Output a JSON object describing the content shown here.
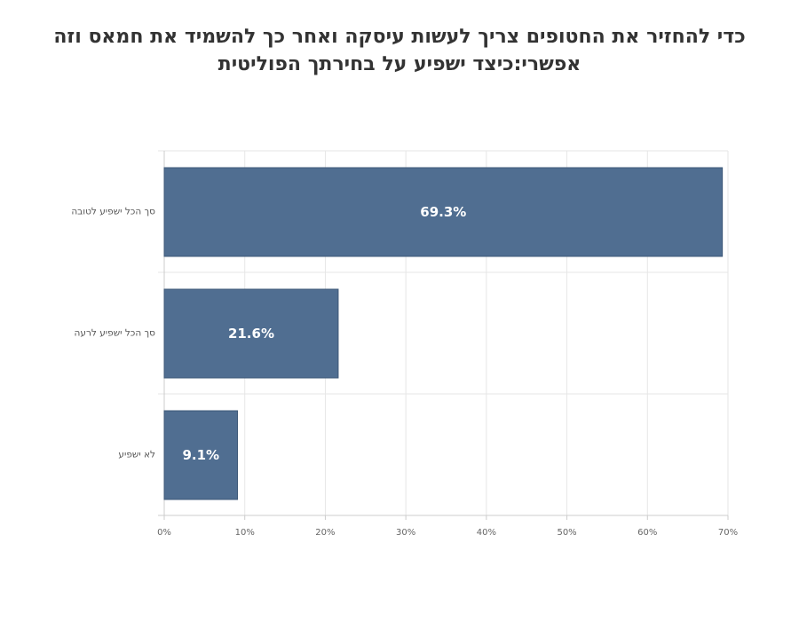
{
  "chart_data": {
    "type": "bar",
    "orientation": "horizontal",
    "title_lines": [
      "כדי להחזיר את החטופים צריך לעשות עיסקה ואחר כך להשמיד את חמאס וזה",
      "אפשרי:כיצד ישפיע על בחירתך הפוליטית"
    ],
    "categories": [
      "סך הכל ישפיע לטובה",
      "סך הכל ישפיע לרעה",
      "לא ישפיע"
    ],
    "values": [
      69.3,
      21.6,
      9.1
    ],
    "data_labels": [
      "69.3%",
      "21.6%",
      "9.1%"
    ],
    "xlim": [
      0,
      70
    ],
    "x_ticks": [
      "0%",
      "10%",
      "20%",
      "30%",
      "40%",
      "50%",
      "60%",
      "70%"
    ],
    "xlabel": "",
    "ylabel": "",
    "grid": true,
    "legend": "none",
    "bar_color": "#506e91"
  }
}
